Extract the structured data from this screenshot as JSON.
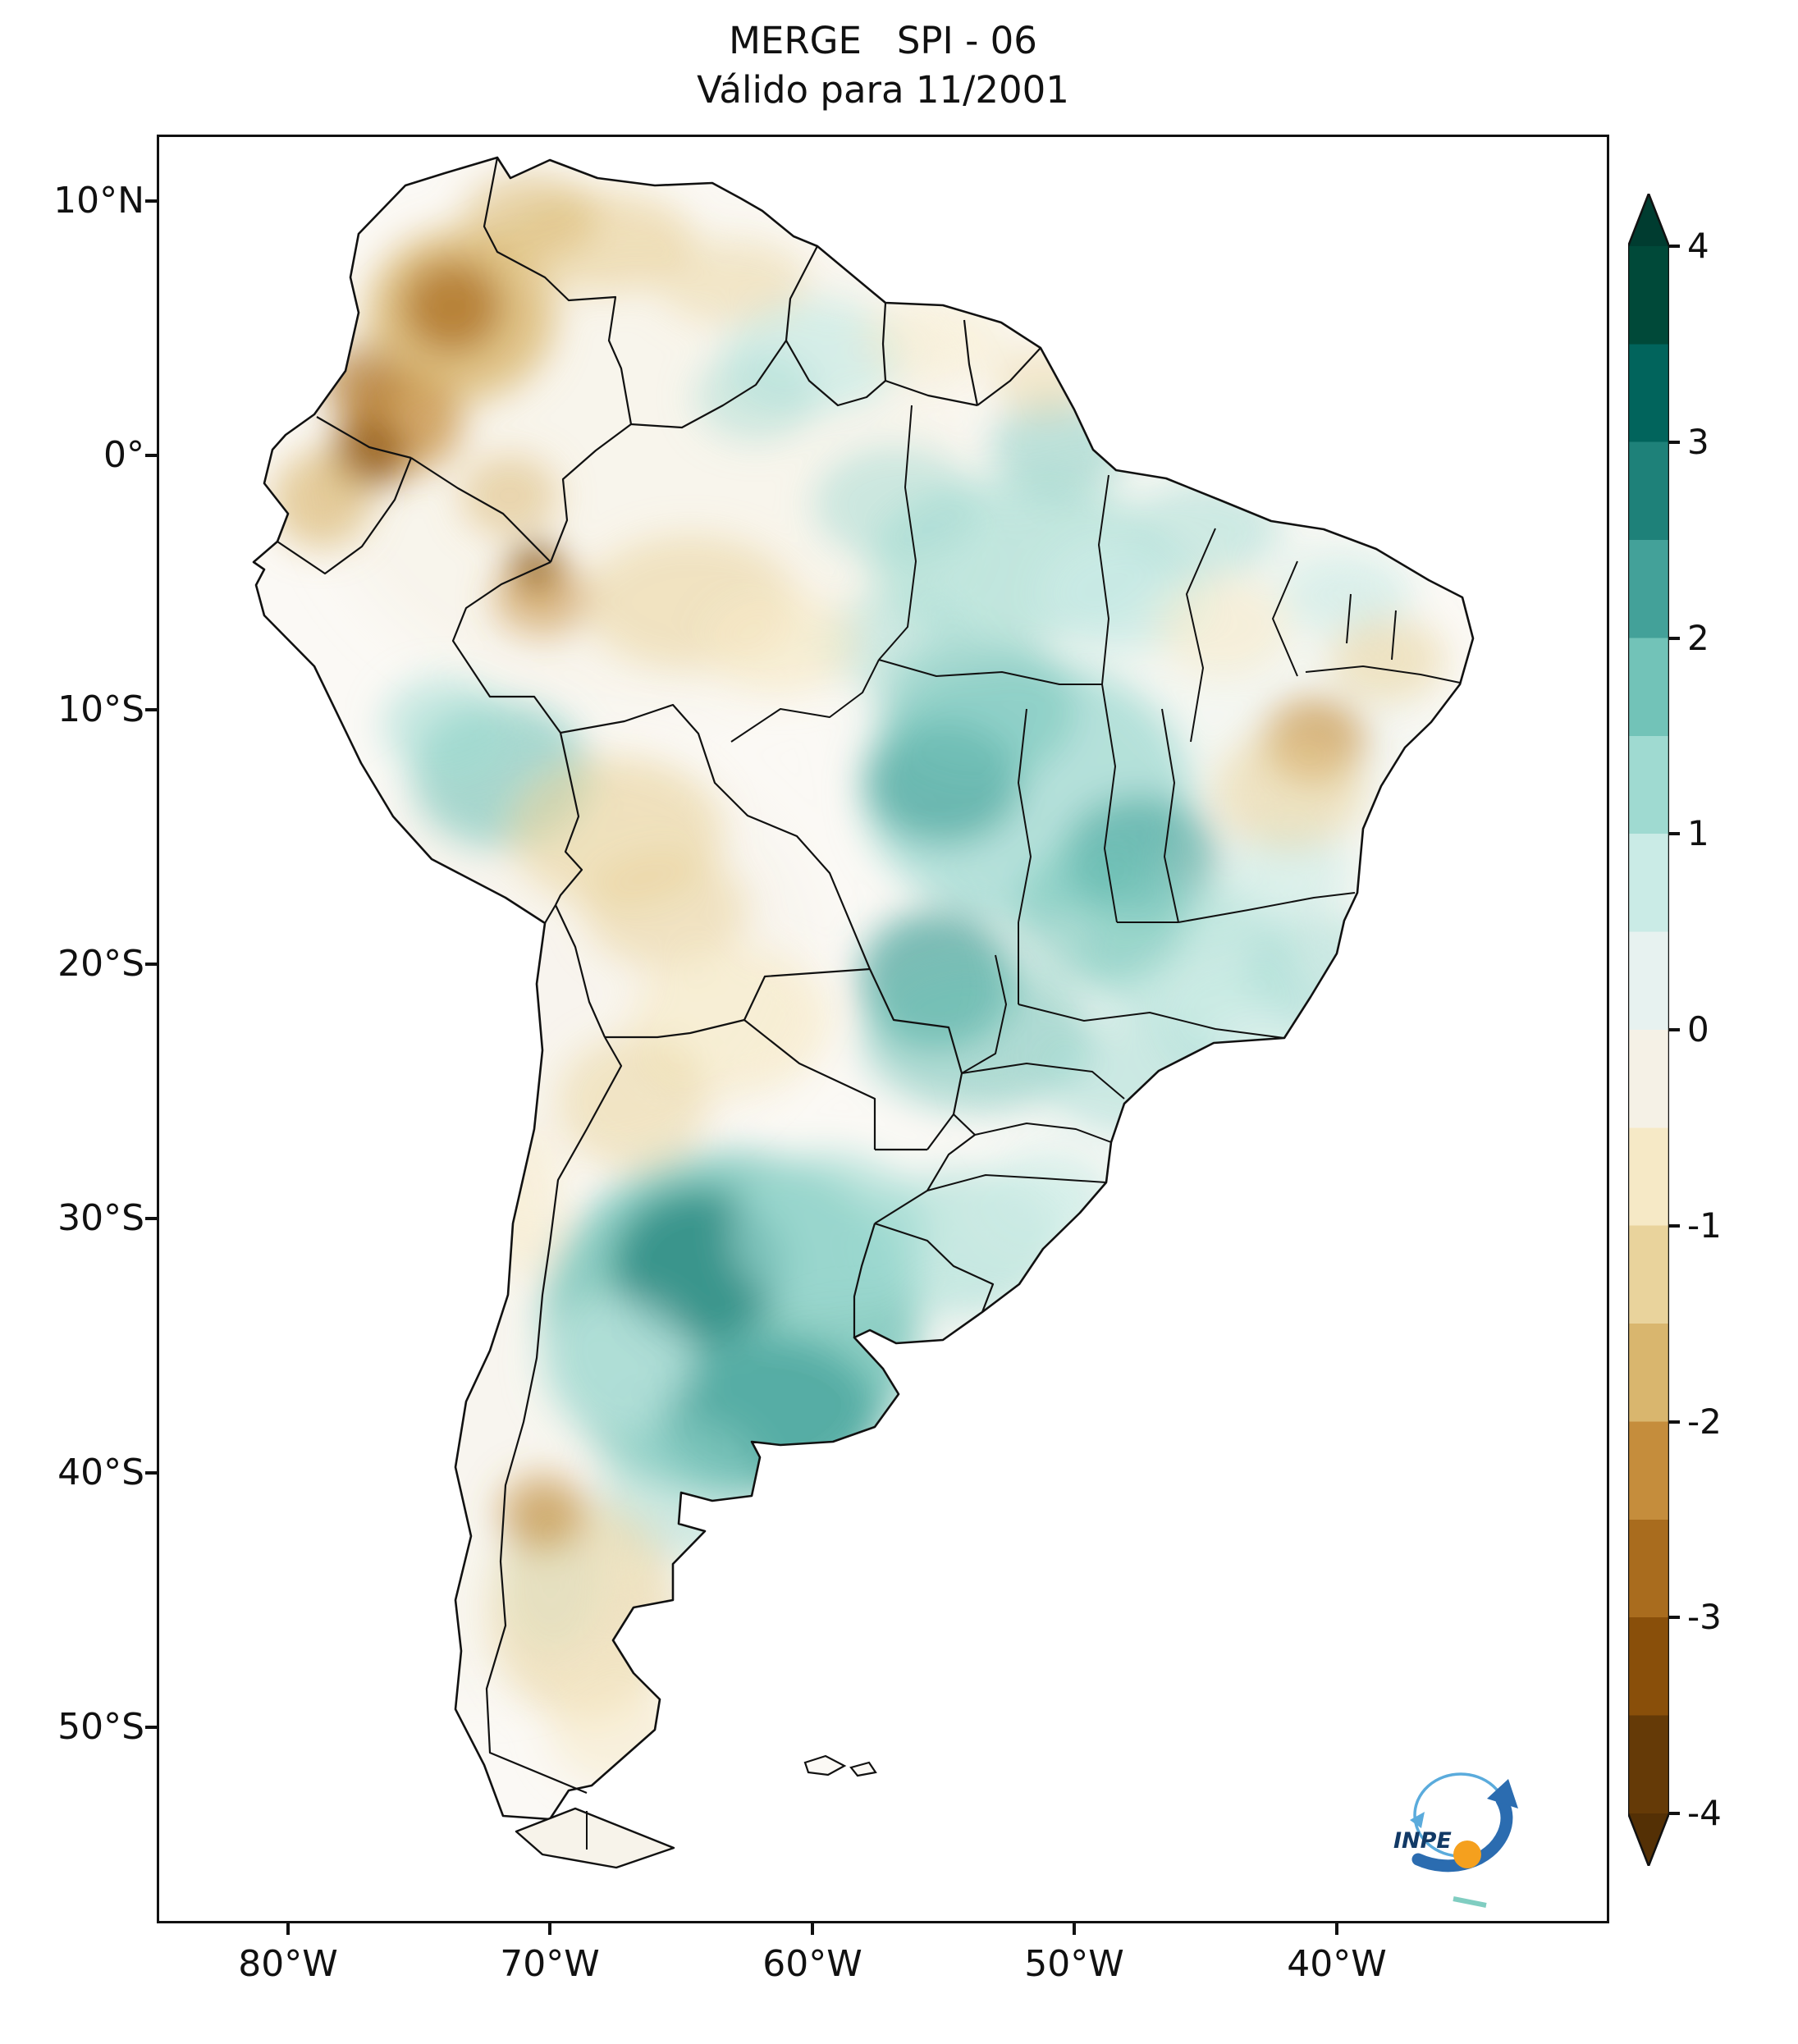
{
  "title": {
    "line1": "MERGE   SPI - 06",
    "line2": "Válido para 11/2001"
  },
  "axes": {
    "y_ticks": [
      "10°N",
      "0°",
      "10°S",
      "20°S",
      "30°S",
      "40°S",
      "50°S"
    ],
    "x_ticks": [
      "80°W",
      "70°W",
      "60°W",
      "50°W",
      "40°W"
    ]
  },
  "colorbar": {
    "tick_labels": [
      "4",
      "3",
      "2",
      "1",
      "0",
      "-1",
      "-2",
      "-3",
      "-4"
    ],
    "range": [
      -4,
      4
    ],
    "band_colors": [
      "#004939",
      "#01645c",
      "#1e8179",
      "#43a199",
      "#72c3b8",
      "#9fdad1",
      "#caebe6",
      "#e7f2f0",
      "#f5f1e6",
      "#f6e9c6",
      "#e9d39c",
      "#d9b66e",
      "#c58d3c",
      "#a96c1e",
      "#894f0a",
      "#653a07"
    ],
    "over_color": "#003c30",
    "under_color": "#543005"
  },
  "map": {
    "region": "South America",
    "product": "MERGE",
    "variable": "SPI",
    "accumulation": "06",
    "valid_month": "11/2001",
    "positive_color": "#35978f",
    "negative_color": "#bf812d",
    "border_color": "#111111"
  },
  "logo": {
    "text": "INPE",
    "arrow_color": "#2b6cb0",
    "orbit_color": "#5aabdc",
    "dot_color": "#f5a01e",
    "text_color": "#123a66"
  }
}
